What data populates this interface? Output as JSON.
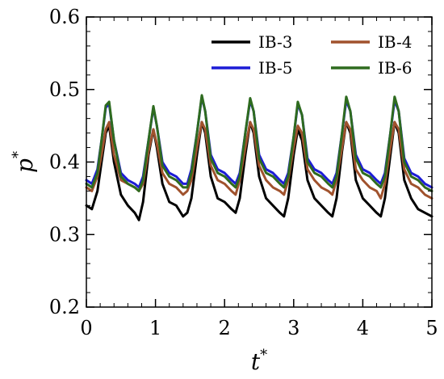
{
  "chart_data": {
    "type": "line",
    "xlabel": "t",
    "xlabel_superscript": "*",
    "ylabel": "p",
    "ylabel_superscript": "*",
    "xlim": [
      0,
      5
    ],
    "ylim": [
      0.2,
      0.6
    ],
    "xticks": [
      0,
      1,
      2,
      3,
      4,
      5
    ],
    "xtick_labels": [
      "0",
      "1",
      "2",
      "3",
      "4",
      "5"
    ],
    "yticks": [
      0.2,
      0.3,
      0.4,
      0.5,
      0.6
    ],
    "ytick_labels": [
      "0.2",
      "0.3",
      "0.4",
      "0.5",
      "0.6"
    ],
    "grid": false,
    "legend_position": "top-right",
    "series": [
      {
        "name": "IB-3",
        "color": "#000000",
        "x": [
          0.0,
          0.08,
          0.16,
          0.22,
          0.28,
          0.33,
          0.4,
          0.5,
          0.6,
          0.7,
          0.76,
          0.82,
          0.9,
          0.97,
          1.02,
          1.1,
          1.2,
          1.3,
          1.4,
          1.46,
          1.52,
          1.6,
          1.67,
          1.72,
          1.8,
          1.9,
          2.0,
          2.1,
          2.16,
          2.22,
          2.3,
          2.37,
          2.42,
          2.5,
          2.6,
          2.7,
          2.8,
          2.86,
          2.92,
          3.0,
          3.06,
          3.12,
          3.2,
          3.3,
          3.4,
          3.5,
          3.56,
          3.62,
          3.7,
          3.76,
          3.82,
          3.9,
          4.0,
          4.1,
          4.2,
          4.26,
          4.32,
          4.4,
          4.46,
          4.52,
          4.6,
          4.7,
          4.8,
          4.9,
          5.0
        ],
        "y": [
          0.34,
          0.335,
          0.36,
          0.4,
          0.44,
          0.45,
          0.4,
          0.355,
          0.34,
          0.33,
          0.32,
          0.345,
          0.41,
          0.445,
          0.42,
          0.37,
          0.345,
          0.34,
          0.325,
          0.33,
          0.35,
          0.41,
          0.455,
          0.44,
          0.38,
          0.35,
          0.345,
          0.335,
          0.33,
          0.35,
          0.41,
          0.455,
          0.44,
          0.38,
          0.35,
          0.34,
          0.33,
          0.325,
          0.35,
          0.41,
          0.445,
          0.43,
          0.375,
          0.35,
          0.34,
          0.33,
          0.325,
          0.35,
          0.415,
          0.455,
          0.44,
          0.375,
          0.35,
          0.34,
          0.33,
          0.325,
          0.35,
          0.41,
          0.455,
          0.44,
          0.375,
          0.35,
          0.335,
          0.33,
          0.325
        ]
      },
      {
        "name": "IB-4",
        "color": "#a0522d",
        "x": [
          0.0,
          0.08,
          0.16,
          0.22,
          0.28,
          0.33,
          0.4,
          0.5,
          0.6,
          0.7,
          0.76,
          0.82,
          0.9,
          0.97,
          1.02,
          1.1,
          1.2,
          1.3,
          1.4,
          1.46,
          1.52,
          1.6,
          1.67,
          1.72,
          1.8,
          1.9,
          2.0,
          2.1,
          2.16,
          2.22,
          2.3,
          2.37,
          2.42,
          2.5,
          2.6,
          2.7,
          2.8,
          2.86,
          2.92,
          3.0,
          3.06,
          3.12,
          3.2,
          3.3,
          3.4,
          3.5,
          3.56,
          3.62,
          3.7,
          3.76,
          3.82,
          3.9,
          4.0,
          4.1,
          4.2,
          4.26,
          4.32,
          4.4,
          4.46,
          4.52,
          4.6,
          4.7,
          4.8,
          4.9,
          5.0
        ],
        "y": [
          0.365,
          0.36,
          0.38,
          0.41,
          0.445,
          0.455,
          0.41,
          0.375,
          0.37,
          0.365,
          0.36,
          0.37,
          0.415,
          0.445,
          0.425,
          0.385,
          0.37,
          0.365,
          0.355,
          0.36,
          0.375,
          0.42,
          0.455,
          0.445,
          0.395,
          0.375,
          0.37,
          0.36,
          0.355,
          0.375,
          0.42,
          0.455,
          0.445,
          0.395,
          0.375,
          0.365,
          0.36,
          0.355,
          0.375,
          0.42,
          0.45,
          0.44,
          0.39,
          0.375,
          0.365,
          0.36,
          0.355,
          0.375,
          0.42,
          0.455,
          0.445,
          0.39,
          0.375,
          0.365,
          0.36,
          0.35,
          0.37,
          0.42,
          0.455,
          0.445,
          0.39,
          0.37,
          0.365,
          0.355,
          0.35
        ]
      },
      {
        "name": "IB-5",
        "color": "#1c1cd6",
        "x": [
          0.0,
          0.08,
          0.16,
          0.22,
          0.28,
          0.33,
          0.4,
          0.5,
          0.6,
          0.7,
          0.76,
          0.82,
          0.9,
          0.97,
          1.02,
          1.1,
          1.2,
          1.3,
          1.4,
          1.46,
          1.52,
          1.6,
          1.67,
          1.72,
          1.8,
          1.9,
          2.0,
          2.1,
          2.16,
          2.22,
          2.3,
          2.37,
          2.42,
          2.5,
          2.6,
          2.7,
          2.8,
          2.86,
          2.92,
          3.0,
          3.06,
          3.12,
          3.2,
          3.3,
          3.4,
          3.5,
          3.56,
          3.62,
          3.7,
          3.76,
          3.82,
          3.9,
          4.0,
          4.1,
          4.2,
          4.26,
          4.32,
          4.4,
          4.46,
          4.52,
          4.6,
          4.7,
          4.8,
          4.9,
          5.0
        ],
        "y": [
          0.375,
          0.37,
          0.39,
          0.43,
          0.475,
          0.48,
          0.43,
          0.385,
          0.375,
          0.37,
          0.365,
          0.38,
          0.43,
          0.475,
          0.45,
          0.4,
          0.385,
          0.38,
          0.37,
          0.37,
          0.39,
          0.44,
          0.49,
          0.47,
          0.41,
          0.39,
          0.385,
          0.375,
          0.37,
          0.385,
          0.44,
          0.485,
          0.47,
          0.41,
          0.39,
          0.385,
          0.375,
          0.37,
          0.385,
          0.435,
          0.48,
          0.465,
          0.405,
          0.39,
          0.385,
          0.375,
          0.37,
          0.385,
          0.44,
          0.485,
          0.47,
          0.41,
          0.39,
          0.385,
          0.375,
          0.37,
          0.385,
          0.44,
          0.485,
          0.47,
          0.405,
          0.385,
          0.38,
          0.37,
          0.365
        ]
      },
      {
        "name": "IB-6",
        "color": "#2e6b1f",
        "x": [
          0.0,
          0.08,
          0.16,
          0.22,
          0.28,
          0.33,
          0.4,
          0.5,
          0.6,
          0.7,
          0.76,
          0.82,
          0.9,
          0.97,
          1.02,
          1.1,
          1.2,
          1.3,
          1.4,
          1.46,
          1.52,
          1.6,
          1.67,
          1.72,
          1.8,
          1.9,
          2.0,
          2.1,
          2.16,
          2.22,
          2.3,
          2.37,
          2.42,
          2.5,
          2.6,
          2.7,
          2.8,
          2.86,
          2.92,
          3.0,
          3.06,
          3.12,
          3.2,
          3.3,
          3.4,
          3.5,
          3.56,
          3.62,
          3.7,
          3.76,
          3.82,
          3.9,
          4.0,
          4.1,
          4.2,
          4.26,
          4.32,
          4.4,
          4.46,
          4.52,
          4.6,
          4.7,
          4.8,
          4.9,
          5.0
        ],
        "y": [
          0.37,
          0.365,
          0.385,
          0.43,
          0.478,
          0.483,
          0.43,
          0.38,
          0.37,
          0.365,
          0.36,
          0.375,
          0.43,
          0.477,
          0.45,
          0.395,
          0.38,
          0.375,
          0.365,
          0.365,
          0.385,
          0.44,
          0.492,
          0.47,
          0.405,
          0.385,
          0.38,
          0.37,
          0.365,
          0.38,
          0.44,
          0.488,
          0.47,
          0.405,
          0.385,
          0.38,
          0.37,
          0.365,
          0.38,
          0.435,
          0.483,
          0.465,
          0.4,
          0.385,
          0.38,
          0.37,
          0.365,
          0.38,
          0.44,
          0.49,
          0.47,
          0.405,
          0.385,
          0.38,
          0.37,
          0.365,
          0.38,
          0.44,
          0.49,
          0.47,
          0.4,
          0.38,
          0.375,
          0.365,
          0.36
        ]
      }
    ]
  }
}
